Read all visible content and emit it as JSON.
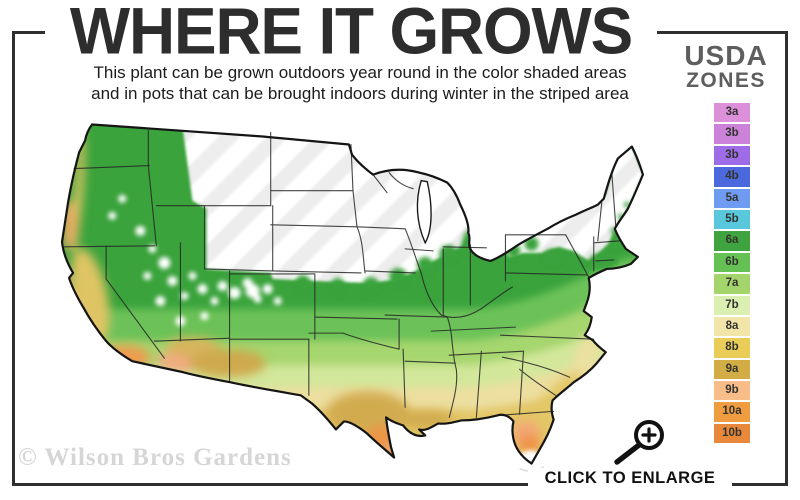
{
  "header": {
    "title": "WHERE IT GROWS",
    "subtitle_line1": "This plant can be grown outdoors year round in the color shaded areas",
    "subtitle_line2": "and in pots that can be brought indoors during winter in the striped area"
  },
  "legend": {
    "heading_line1": "USDA",
    "heading_line2": "ZONES",
    "zones": [
      {
        "label": "3a",
        "color": "#db90d9"
      },
      {
        "label": "3b",
        "color": "#cb82d8"
      },
      {
        "label": "3b",
        "color": "#9e6ce6"
      },
      {
        "label": "4b",
        "color": "#4c68dd"
      },
      {
        "label": "5a",
        "color": "#6f9bf2"
      },
      {
        "label": "5b",
        "color": "#59c8dd"
      },
      {
        "label": "6a",
        "color": "#3fa33f"
      },
      {
        "label": "6b",
        "color": "#66c155"
      },
      {
        "label": "7a",
        "color": "#a4d56c"
      },
      {
        "label": "7b",
        "color": "#dcefb2"
      },
      {
        "label": "8a",
        "color": "#f2e5a9"
      },
      {
        "label": "8b",
        "color": "#e9cd58"
      },
      {
        "label": "9a",
        "color": "#d2ad45"
      },
      {
        "label": "9b",
        "color": "#f8bd88"
      },
      {
        "label": "10a",
        "color": "#f09d41"
      },
      {
        "label": "10b",
        "color": "#e8883b"
      }
    ]
  },
  "map": {
    "watermark": "© Wilson Bros Gardens"
  },
  "footer": {
    "enlarge_label": "CLICK TO ENLARGE"
  },
  "icons": {
    "magnifier": "magnifier-plus-icon"
  },
  "colors": {
    "frame": "#2f2f2f",
    "title_text": "#2d2d2d",
    "usda_heading": "#5e5e5e",
    "watermark_text": "#d6d6d6",
    "map_base_green": "#3aa33c",
    "stripe_light": "#ededed"
  }
}
